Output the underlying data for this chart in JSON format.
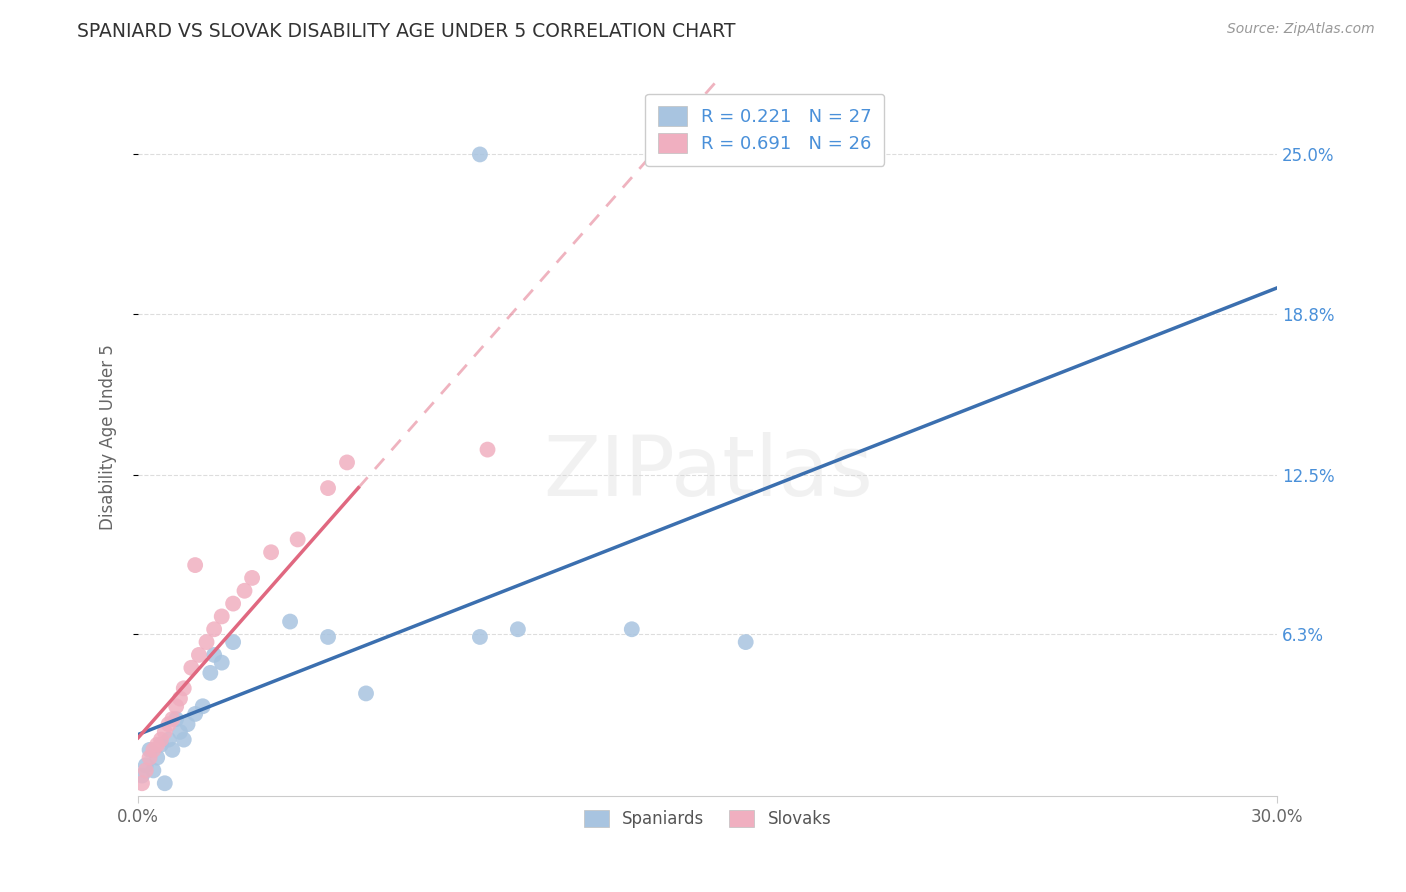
{
  "title": "SPANIARD VS SLOVAK DISABILITY AGE UNDER 5 CORRELATION CHART",
  "source": "Source: ZipAtlas.com",
  "ylabel": "Disability Age Under 5",
  "xlim": [
    0.0,
    0.3
  ],
  "ylim": [
    0.0,
    0.28
  ],
  "r_spaniard": 0.221,
  "n_spaniard": 27,
  "r_slovak": 0.691,
  "n_slovak": 26,
  "spaniard_color": "#a8c4e0",
  "slovak_color": "#f0afc0",
  "spaniard_line_color": "#3b6faf",
  "slovak_line_color": "#e06880",
  "right_tick_color": "#4a90d9",
  "source_color": "#999999",
  "title_color": "#333333",
  "axis_label_color": "#666666",
  "grid_color": "#dddddd",
  "background_color": "#ffffff",
  "watermark": "ZIPatlas",
  "spaniard_x": [
    0.001,
    0.002,
    0.003,
    0.004,
    0.005,
    0.006,
    0.007,
    0.008,
    0.009,
    0.01,
    0.011,
    0.012,
    0.013,
    0.015,
    0.017,
    0.019,
    0.02,
    0.022,
    0.025,
    0.04,
    0.05,
    0.06,
    0.09,
    0.1,
    0.13,
    0.16,
    0.09
  ],
  "spaniard_y": [
    0.008,
    0.012,
    0.018,
    0.01,
    0.015,
    0.02,
    0.005,
    0.022,
    0.018,
    0.03,
    0.025,
    0.022,
    0.028,
    0.032,
    0.035,
    0.048,
    0.055,
    0.052,
    0.06,
    0.068,
    0.062,
    0.04,
    0.062,
    0.065,
    0.065,
    0.06,
    0.25
  ],
  "slovak_x": [
    0.001,
    0.002,
    0.003,
    0.004,
    0.005,
    0.006,
    0.007,
    0.008,
    0.009,
    0.01,
    0.011,
    0.012,
    0.014,
    0.016,
    0.018,
    0.02,
    0.022,
    0.025,
    0.028,
    0.03,
    0.035,
    0.042,
    0.05,
    0.055,
    0.092,
    0.015
  ],
  "slovak_y": [
    0.005,
    0.01,
    0.015,
    0.018,
    0.02,
    0.022,
    0.025,
    0.028,
    0.03,
    0.035,
    0.038,
    0.042,
    0.05,
    0.055,
    0.06,
    0.065,
    0.07,
    0.075,
    0.08,
    0.085,
    0.095,
    0.1,
    0.12,
    0.13,
    0.135,
    0.09
  ],
  "ytick_positions": [
    0.063,
    0.125,
    0.188,
    0.25
  ],
  "ytick_labels": [
    "6.3%",
    "12.5%",
    "18.8%",
    "25.0%"
  ],
  "xtick_positions": [
    0.0,
    0.3
  ],
  "xtick_labels": [
    "0.0%",
    "30.0%"
  ]
}
